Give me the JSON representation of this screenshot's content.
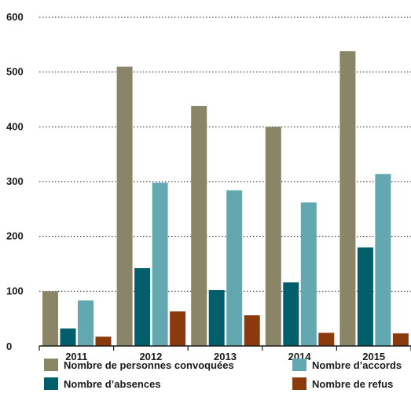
{
  "chart_data": {
    "type": "bar",
    "categories": [
      "2011",
      "2012",
      "2013",
      "2014",
      "2015"
    ],
    "series": [
      {
        "name": "Nombre de personnes convoquées",
        "color": "#8a8567",
        "values": [
          100,
          510,
          438,
          400,
          538
        ]
      },
      {
        "name": "Nombre d’absences",
        "color": "#005f6b",
        "values": [
          32,
          142,
          102,
          116,
          180
        ]
      },
      {
        "name": "Nombre d’accords",
        "color": "#63a7b0",
        "values": [
          83,
          298,
          284,
          262,
          314
        ]
      },
      {
        "name": "Nombre de refus",
        "color": "#8b3a0e",
        "values": [
          17,
          63,
          56,
          24,
          23
        ]
      }
    ],
    "ylim": [
      0,
      600
    ],
    "yticks": [
      0,
      100,
      200,
      300,
      400,
      500,
      600
    ],
    "grid": true,
    "legend_position": "bottom"
  }
}
